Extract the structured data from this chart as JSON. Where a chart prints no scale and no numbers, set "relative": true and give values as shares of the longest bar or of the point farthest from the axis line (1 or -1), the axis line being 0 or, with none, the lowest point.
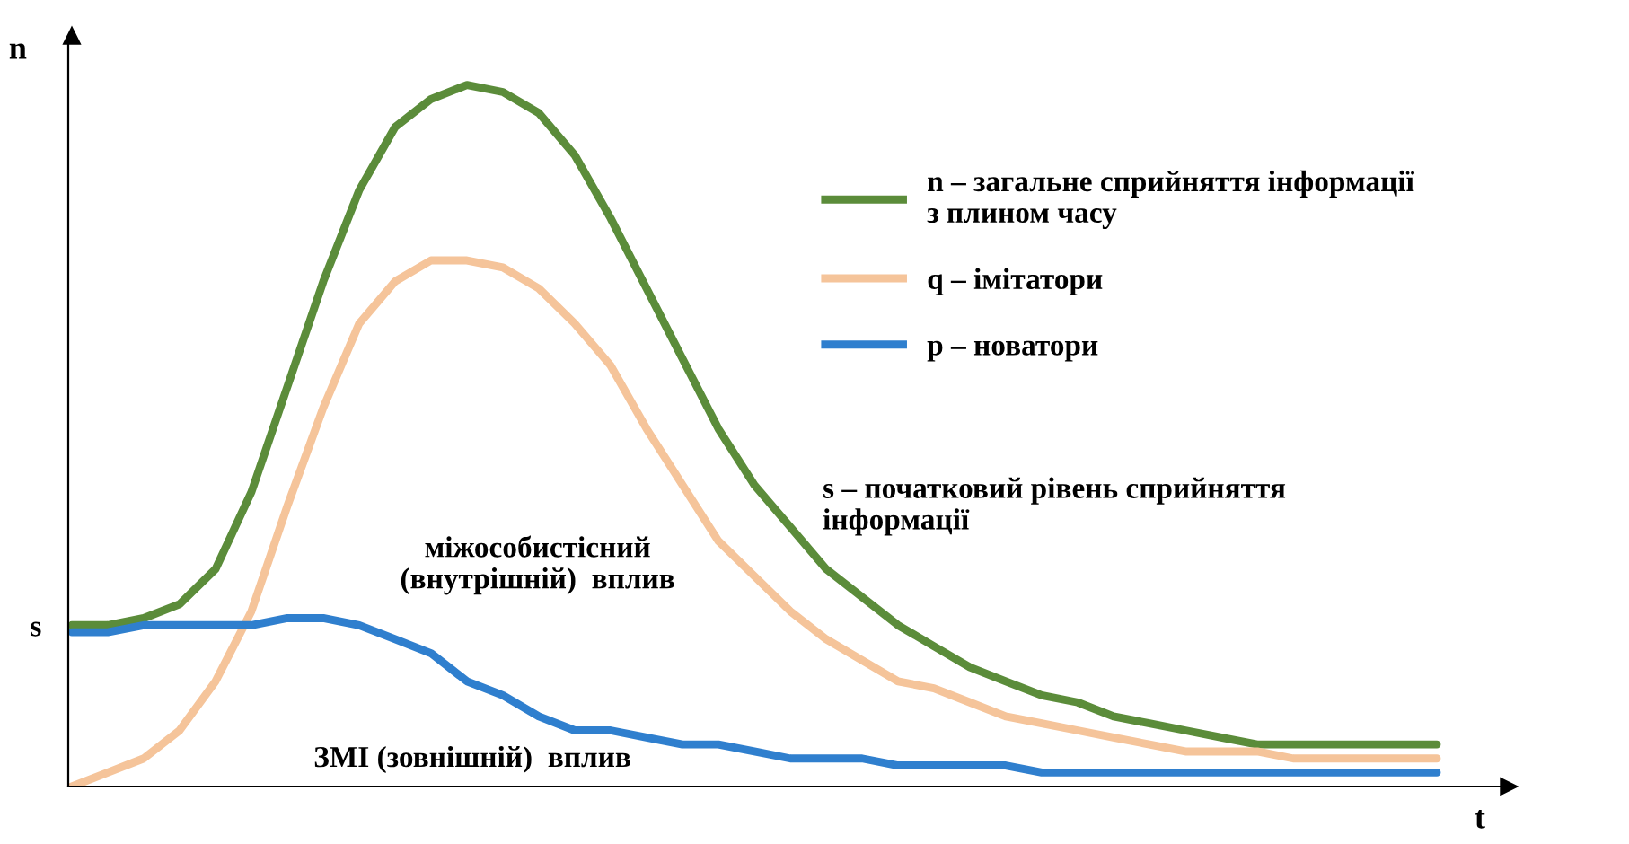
{
  "chart_data": {
    "type": "line",
    "relative": true,
    "xlabel": "t",
    "ylabel": "n",
    "legend": "top right",
    "marker": "none",
    "line_style": "solid",
    "categories": [
      null,
      null,
      null,
      null,
      null,
      null,
      null,
      null,
      null,
      null,
      null,
      null,
      null,
      null,
      null,
      null,
      null,
      null,
      null,
      null,
      null,
      null,
      null,
      null,
      null,
      null,
      null,
      null,
      null,
      null,
      null,
      null,
      null,
      null,
      null,
      null,
      null,
      null,
      null
    ],
    "series": [
      {
        "name": "n – загальне сприйняття інформації\nз плином часу",
        "color": "#5b8c3a",
        "values": [
          0.23,
          0.23,
          0.24,
          0.26,
          0.31,
          0.42,
          0.57,
          0.72,
          0.85,
          0.94,
          0.98,
          1.0,
          0.99,
          0.96,
          0.9,
          0.81,
          0.71,
          0.61,
          0.51,
          0.43,
          0.37,
          0.31,
          0.27,
          0.23,
          0.2,
          0.17,
          0.15,
          0.13,
          0.12,
          0.1,
          0.09,
          0.08,
          0.07,
          0.06,
          0.06,
          0.06,
          0.06,
          0.06,
          0.06
        ]
      },
      {
        "name": "q – імітатори",
        "color": "#f5c49a",
        "values": [
          0.0,
          0.02,
          0.04,
          0.08,
          0.15,
          0.25,
          0.4,
          0.54,
          0.66,
          0.72,
          0.75,
          0.75,
          0.74,
          0.71,
          0.66,
          0.6,
          0.51,
          0.43,
          0.35,
          0.3,
          0.25,
          0.21,
          0.18,
          0.15,
          0.14,
          0.12,
          0.1,
          0.09,
          0.08,
          0.07,
          0.06,
          0.05,
          0.05,
          0.05,
          0.04,
          0.04,
          0.04,
          0.04,
          0.04
        ]
      },
      {
        "name": "p – новатори",
        "color": "#2f7fce",
        "values": [
          0.22,
          0.22,
          0.23,
          0.23,
          0.23,
          0.23,
          0.24,
          0.24,
          0.23,
          0.21,
          0.19,
          0.15,
          0.13,
          0.1,
          0.08,
          0.08,
          0.07,
          0.06,
          0.06,
          0.05,
          0.04,
          0.04,
          0.04,
          0.03,
          0.03,
          0.03,
          0.03,
          0.02,
          0.02,
          0.02,
          0.02,
          0.02,
          0.02,
          0.02,
          0.02,
          0.02,
          0.02,
          0.02,
          0.02
        ]
      }
    ],
    "annotations": [
      "s",
      "міжособистісний\n(внутрішній)  вплив",
      "ЗМІ (зовнішній)  вплив",
      "s – початковий рівень сприйняття\nінформації"
    ]
  }
}
